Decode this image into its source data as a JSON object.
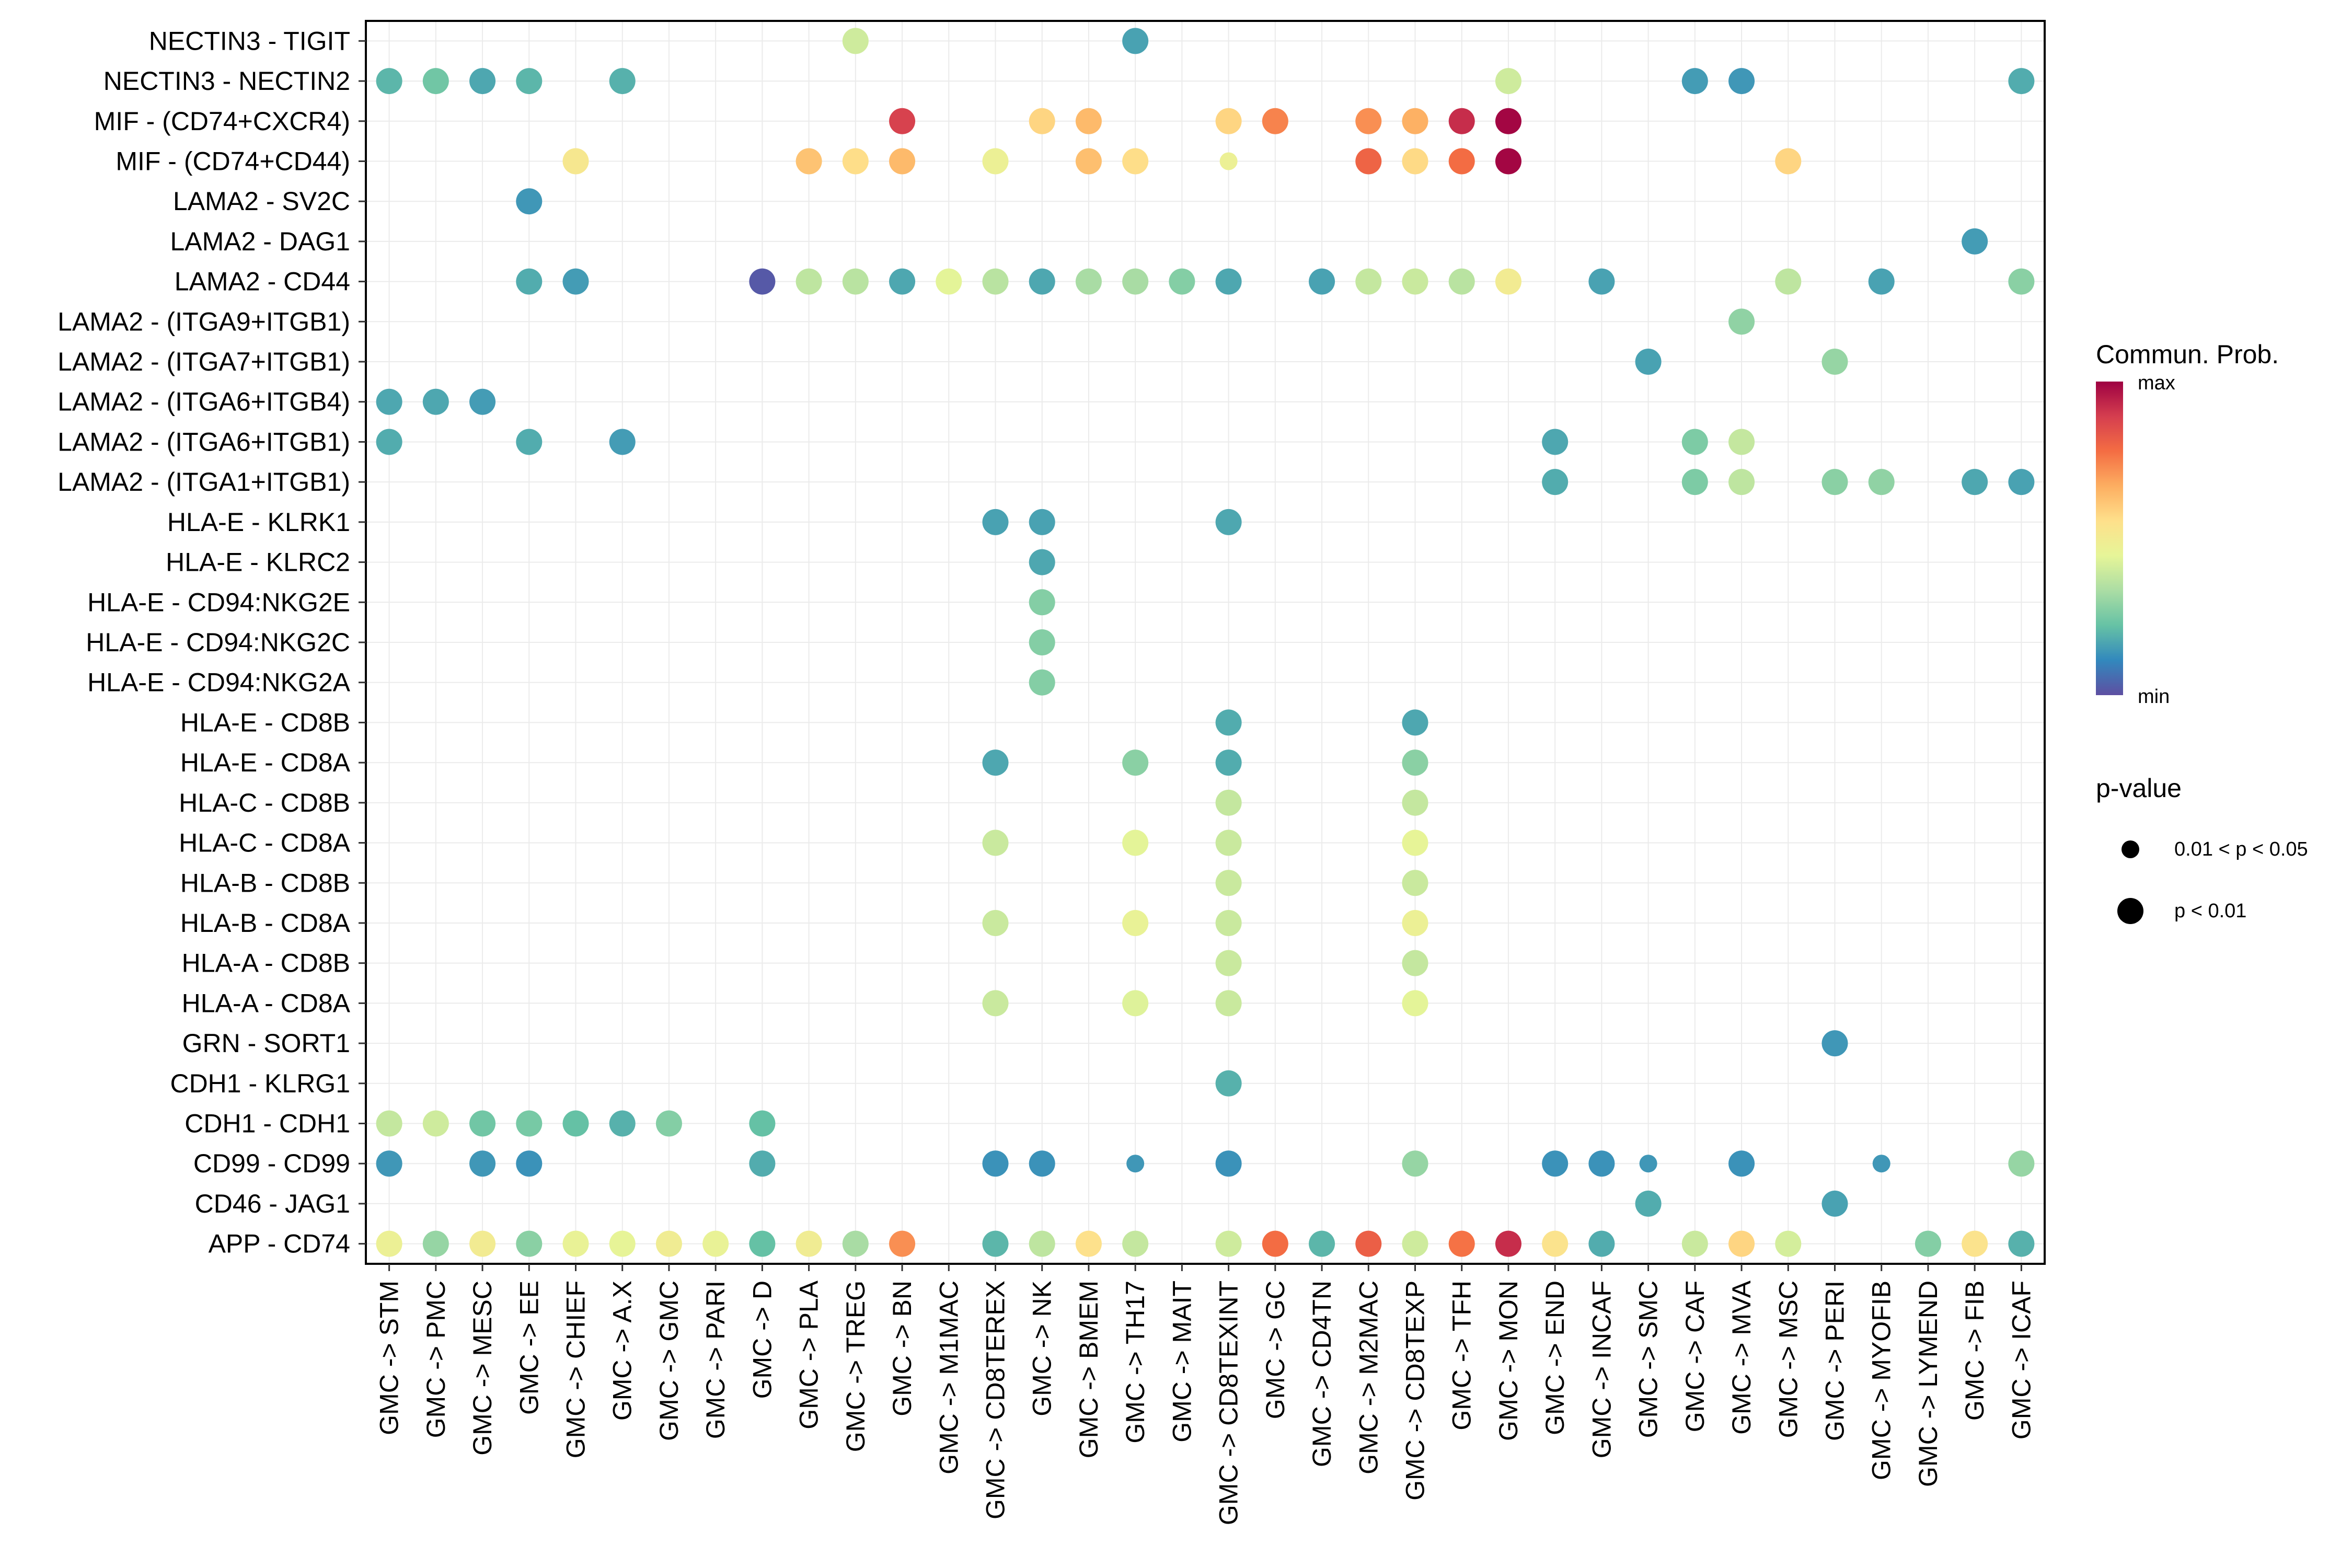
{
  "chart_data": {
    "type": "scatter",
    "title": "",
    "xlabel": "",
    "ylabel": "",
    "grid": true,
    "categories_x": [
      "GMC -> STM",
      "GMC -> PMC",
      "GMC -> MESC",
      "GMC -> EE",
      "GMC -> CHIEF",
      "GMC -> A.X",
      "GMC -> GMC",
      "GMC -> PARI",
      "GMC -> D",
      "GMC -> PLA",
      "GMC -> TREG",
      "GMC -> BN",
      "GMC -> M1MAC",
      "GMC -> CD8TEREX",
      "GMC -> NK",
      "GMC -> BMEM",
      "GMC -> TH17",
      "GMC -> MAIT",
      "GMC -> CD8TEXINT",
      "GMC -> GC",
      "GMC -> CD4TN",
      "GMC -> M2MAC",
      "GMC -> CD8TEXP",
      "GMC -> TFH",
      "GMC -> MON",
      "GMC -> END",
      "GMC -> INCAF",
      "GMC -> SMC",
      "GMC -> CAF",
      "GMC -> MVA",
      "GMC -> MSC",
      "GMC -> PERI",
      "GMC -> MYOFIB",
      "GMC -> LYMEND",
      "GMC -> FIB",
      "GMC -> ICAF"
    ],
    "categories_y": [
      "NECTIN3 - TIGIT",
      "NECTIN3 - NECTIN2",
      "MIF - (CD74+CXCR4)",
      "MIF - (CD74+CD44)",
      "LAMA2 - SV2C",
      "LAMA2 - DAG1",
      "LAMA2 - CD44",
      "LAMA2 - (ITGA9+ITGB1)",
      "LAMA2 - (ITGA7+ITGB1)",
      "LAMA2 - (ITGA6+ITGB4)",
      "LAMA2 - (ITGA6+ITGB1)",
      "LAMA2 - (ITGA1+ITGB1)",
      "HLA-E - KLRK1",
      "HLA-E - KLRC2",
      "HLA-E - CD94:NKG2E",
      "HLA-E - CD94:NKG2C",
      "HLA-E - CD94:NKG2A",
      "HLA-E - CD8B",
      "HLA-E - CD8A",
      "HLA-C - CD8B",
      "HLA-C - CD8A",
      "HLA-B - CD8B",
      "HLA-B - CD8A",
      "HLA-A - CD8B",
      "HLA-A - CD8A",
      "GRN - SORT1",
      "CDH1 - KLRG1",
      "CDH1 - CDH1",
      "CD99 - CD99",
      "CD46 - JAG1",
      "APP - CD74"
    ],
    "color_scale": [
      "#5E4FA2",
      "#3288BD",
      "#66C2A5",
      "#ABDDA4",
      "#E6F598",
      "#FEE08B",
      "#FDAE61",
      "#F46D43",
      "#D53E4F",
      "#9E0142"
    ],
    "points": [
      {
        "x": 10,
        "y": 0,
        "v": 0.4,
        "p": "p < 0.01"
      },
      {
        "x": 16,
        "y": 0,
        "v": 0.16,
        "p": "p < 0.01"
      },
      {
        "x": 0,
        "y": 1,
        "v": 0.2,
        "p": "p < 0.01"
      },
      {
        "x": 1,
        "y": 1,
        "v": 0.24,
        "p": "p < 0.01"
      },
      {
        "x": 2,
        "y": 1,
        "v": 0.17,
        "p": "p < 0.01"
      },
      {
        "x": 3,
        "y": 1,
        "v": 0.2,
        "p": "p < 0.01"
      },
      {
        "x": 5,
        "y": 1,
        "v": 0.19,
        "p": "p < 0.01"
      },
      {
        "x": 24,
        "y": 1,
        "v": 0.4,
        "p": "p < 0.01"
      },
      {
        "x": 28,
        "y": 1,
        "v": 0.15,
        "p": "p < 0.01"
      },
      {
        "x": 29,
        "y": 1,
        "v": 0.14,
        "p": "p < 0.01"
      },
      {
        "x": 35,
        "y": 1,
        "v": 0.18,
        "p": "p < 0.01"
      },
      {
        "x": 11,
        "y": 2,
        "v": 0.88,
        "p": "p < 0.01"
      },
      {
        "x": 14,
        "y": 2,
        "v": 0.58,
        "p": "p < 0.01"
      },
      {
        "x": 15,
        "y": 2,
        "v": 0.64,
        "p": "p < 0.01"
      },
      {
        "x": 18,
        "y": 2,
        "v": 0.58,
        "p": "p < 0.01"
      },
      {
        "x": 19,
        "y": 2,
        "v": 0.74,
        "p": "p < 0.01"
      },
      {
        "x": 21,
        "y": 2,
        "v": 0.72,
        "p": "p < 0.01"
      },
      {
        "x": 22,
        "y": 2,
        "v": 0.66,
        "p": "p < 0.01"
      },
      {
        "x": 23,
        "y": 2,
        "v": 0.92,
        "p": "p < 0.01"
      },
      {
        "x": 24,
        "y": 2,
        "v": 0.99,
        "p": "p < 0.01"
      },
      {
        "x": 4,
        "y": 3,
        "v": 0.52,
        "p": "p < 0.01"
      },
      {
        "x": 9,
        "y": 3,
        "v": 0.62,
        "p": "p < 0.01"
      },
      {
        "x": 10,
        "y": 3,
        "v": 0.56,
        "p": "p < 0.01"
      },
      {
        "x": 11,
        "y": 3,
        "v": 0.64,
        "p": "p < 0.01"
      },
      {
        "x": 13,
        "y": 3,
        "v": 0.47,
        "p": "p < 0.01"
      },
      {
        "x": 15,
        "y": 3,
        "v": 0.63,
        "p": "p < 0.01"
      },
      {
        "x": 16,
        "y": 3,
        "v": 0.56,
        "p": "p < 0.01"
      },
      {
        "x": 18,
        "y": 3,
        "v": 0.47,
        "p": "0.01 < p < 0.05"
      },
      {
        "x": 21,
        "y": 3,
        "v": 0.8,
        "p": "p < 0.01"
      },
      {
        "x": 22,
        "y": 3,
        "v": 0.57,
        "p": "p < 0.01"
      },
      {
        "x": 23,
        "y": 3,
        "v": 0.78,
        "p": "p < 0.01"
      },
      {
        "x": 24,
        "y": 3,
        "v": 0.99,
        "p": "p < 0.01"
      },
      {
        "x": 30,
        "y": 3,
        "v": 0.58,
        "p": "p < 0.01"
      },
      {
        "x": 3,
        "y": 4,
        "v": 0.14,
        "p": "p < 0.01"
      },
      {
        "x": 34,
        "y": 5,
        "v": 0.15,
        "p": "p < 0.01"
      },
      {
        "x": 3,
        "y": 6,
        "v": 0.18,
        "p": "p < 0.01"
      },
      {
        "x": 4,
        "y": 6,
        "v": 0.15,
        "p": "p < 0.01"
      },
      {
        "x": 8,
        "y": 6,
        "v": 0.02,
        "p": "p < 0.01"
      },
      {
        "x": 9,
        "y": 6,
        "v": 0.37,
        "p": "p < 0.01"
      },
      {
        "x": 10,
        "y": 6,
        "v": 0.36,
        "p": "p < 0.01"
      },
      {
        "x": 11,
        "y": 6,
        "v": 0.17,
        "p": "p < 0.01"
      },
      {
        "x": 12,
        "y": 6,
        "v": 0.44,
        "p": "p < 0.01"
      },
      {
        "x": 13,
        "y": 6,
        "v": 0.36,
        "p": "p < 0.01"
      },
      {
        "x": 14,
        "y": 6,
        "v": 0.17,
        "p": "p < 0.01"
      },
      {
        "x": 15,
        "y": 6,
        "v": 0.33,
        "p": "p < 0.01"
      },
      {
        "x": 16,
        "y": 6,
        "v": 0.33,
        "p": "p < 0.01"
      },
      {
        "x": 17,
        "y": 6,
        "v": 0.27,
        "p": "p < 0.01"
      },
      {
        "x": 18,
        "y": 6,
        "v": 0.17,
        "p": "p < 0.01"
      },
      {
        "x": 20,
        "y": 6,
        "v": 0.16,
        "p": "p < 0.01"
      },
      {
        "x": 21,
        "y": 6,
        "v": 0.38,
        "p": "p < 0.01"
      },
      {
        "x": 22,
        "y": 6,
        "v": 0.39,
        "p": "p < 0.01"
      },
      {
        "x": 23,
        "y": 6,
        "v": 0.36,
        "p": "p < 0.01"
      },
      {
        "x": 24,
        "y": 6,
        "v": 0.5,
        "p": "p < 0.01"
      },
      {
        "x": 26,
        "y": 6,
        "v": 0.16,
        "p": "p < 0.01"
      },
      {
        "x": 30,
        "y": 6,
        "v": 0.37,
        "p": "p < 0.01"
      },
      {
        "x": 32,
        "y": 6,
        "v": 0.16,
        "p": "p < 0.01"
      },
      {
        "x": 35,
        "y": 6,
        "v": 0.28,
        "p": "p < 0.01"
      },
      {
        "x": 29,
        "y": 7,
        "v": 0.29,
        "p": "p < 0.01"
      },
      {
        "x": 27,
        "y": 8,
        "v": 0.16,
        "p": "p < 0.01"
      },
      {
        "x": 31,
        "y": 8,
        "v": 0.3,
        "p": "p < 0.01"
      },
      {
        "x": 0,
        "y": 9,
        "v": 0.17,
        "p": "p < 0.01"
      },
      {
        "x": 1,
        "y": 9,
        "v": 0.17,
        "p": "p < 0.01"
      },
      {
        "x": 2,
        "y": 9,
        "v": 0.15,
        "p": "p < 0.01"
      },
      {
        "x": 0,
        "y": 10,
        "v": 0.18,
        "p": "p < 0.01"
      },
      {
        "x": 3,
        "y": 10,
        "v": 0.18,
        "p": "p < 0.01"
      },
      {
        "x": 5,
        "y": 10,
        "v": 0.15,
        "p": "p < 0.01"
      },
      {
        "x": 25,
        "y": 10,
        "v": 0.17,
        "p": "p < 0.01"
      },
      {
        "x": 28,
        "y": 10,
        "v": 0.26,
        "p": "p < 0.01"
      },
      {
        "x": 29,
        "y": 10,
        "v": 0.38,
        "p": "p < 0.01"
      },
      {
        "x": 25,
        "y": 11,
        "v": 0.18,
        "p": "p < 0.01"
      },
      {
        "x": 28,
        "y": 11,
        "v": 0.26,
        "p": "p < 0.01"
      },
      {
        "x": 29,
        "y": 11,
        "v": 0.37,
        "p": "p < 0.01"
      },
      {
        "x": 31,
        "y": 11,
        "v": 0.28,
        "p": "p < 0.01"
      },
      {
        "x": 32,
        "y": 11,
        "v": 0.29,
        "p": "p < 0.01"
      },
      {
        "x": 34,
        "y": 11,
        "v": 0.17,
        "p": "p < 0.01"
      },
      {
        "x": 35,
        "y": 11,
        "v": 0.16,
        "p": "p < 0.01"
      },
      {
        "x": 13,
        "y": 12,
        "v": 0.16,
        "p": "p < 0.01"
      },
      {
        "x": 14,
        "y": 12,
        "v": 0.16,
        "p": "p < 0.01"
      },
      {
        "x": 18,
        "y": 12,
        "v": 0.17,
        "p": "p < 0.01"
      },
      {
        "x": 14,
        "y": 13,
        "v": 0.17,
        "p": "p < 0.01"
      },
      {
        "x": 14,
        "y": 14,
        "v": 0.27,
        "p": "p < 0.01"
      },
      {
        "x": 14,
        "y": 15,
        "v": 0.27,
        "p": "p < 0.01"
      },
      {
        "x": 14,
        "y": 16,
        "v": 0.27,
        "p": "p < 0.01"
      },
      {
        "x": 18,
        "y": 17,
        "v": 0.18,
        "p": "p < 0.01"
      },
      {
        "x": 22,
        "y": 17,
        "v": 0.17,
        "p": "p < 0.01"
      },
      {
        "x": 13,
        "y": 18,
        "v": 0.17,
        "p": "p < 0.01"
      },
      {
        "x": 16,
        "y": 18,
        "v": 0.28,
        "p": "p < 0.01"
      },
      {
        "x": 18,
        "y": 18,
        "v": 0.18,
        "p": "p < 0.01"
      },
      {
        "x": 22,
        "y": 18,
        "v": 0.28,
        "p": "p < 0.01"
      },
      {
        "x": 18,
        "y": 19,
        "v": 0.38,
        "p": "p < 0.01"
      },
      {
        "x": 22,
        "y": 19,
        "v": 0.38,
        "p": "p < 0.01"
      },
      {
        "x": 13,
        "y": 20,
        "v": 0.39,
        "p": "p < 0.01"
      },
      {
        "x": 16,
        "y": 20,
        "v": 0.44,
        "p": "p < 0.01"
      },
      {
        "x": 18,
        "y": 20,
        "v": 0.39,
        "p": "p < 0.01"
      },
      {
        "x": 22,
        "y": 20,
        "v": 0.45,
        "p": "p < 0.01"
      },
      {
        "x": 18,
        "y": 21,
        "v": 0.39,
        "p": "p < 0.01"
      },
      {
        "x": 22,
        "y": 21,
        "v": 0.39,
        "p": "p < 0.01"
      },
      {
        "x": 13,
        "y": 22,
        "v": 0.39,
        "p": "p < 0.01"
      },
      {
        "x": 16,
        "y": 22,
        "v": 0.46,
        "p": "p < 0.01"
      },
      {
        "x": 18,
        "y": 22,
        "v": 0.39,
        "p": "p < 0.01"
      },
      {
        "x": 22,
        "y": 22,
        "v": 0.47,
        "p": "p < 0.01"
      },
      {
        "x": 18,
        "y": 23,
        "v": 0.39,
        "p": "p < 0.01"
      },
      {
        "x": 22,
        "y": 23,
        "v": 0.38,
        "p": "p < 0.01"
      },
      {
        "x": 13,
        "y": 24,
        "v": 0.39,
        "p": "p < 0.01"
      },
      {
        "x": 16,
        "y": 24,
        "v": 0.43,
        "p": "p < 0.01"
      },
      {
        "x": 18,
        "y": 24,
        "v": 0.39,
        "p": "p < 0.01"
      },
      {
        "x": 22,
        "y": 24,
        "v": 0.44,
        "p": "p < 0.01"
      },
      {
        "x": 31,
        "y": 25,
        "v": 0.14,
        "p": "p < 0.01"
      },
      {
        "x": 18,
        "y": 26,
        "v": 0.19,
        "p": "p < 0.01"
      },
      {
        "x": 0,
        "y": 27,
        "v": 0.38,
        "p": "p < 0.01"
      },
      {
        "x": 1,
        "y": 27,
        "v": 0.4,
        "p": "p < 0.01"
      },
      {
        "x": 2,
        "y": 27,
        "v": 0.24,
        "p": "p < 0.01"
      },
      {
        "x": 3,
        "y": 27,
        "v": 0.25,
        "p": "p < 0.01"
      },
      {
        "x": 4,
        "y": 27,
        "v": 0.22,
        "p": "p < 0.01"
      },
      {
        "x": 5,
        "y": 27,
        "v": 0.19,
        "p": "p < 0.01"
      },
      {
        "x": 6,
        "y": 27,
        "v": 0.27,
        "p": "p < 0.01"
      },
      {
        "x": 8,
        "y": 27,
        "v": 0.22,
        "p": "p < 0.01"
      },
      {
        "x": 0,
        "y": 28,
        "v": 0.14,
        "p": "p < 0.01"
      },
      {
        "x": 2,
        "y": 28,
        "v": 0.14,
        "p": "p < 0.01"
      },
      {
        "x": 3,
        "y": 28,
        "v": 0.13,
        "p": "p < 0.01"
      },
      {
        "x": 8,
        "y": 28,
        "v": 0.18,
        "p": "p < 0.01"
      },
      {
        "x": 13,
        "y": 28,
        "v": 0.13,
        "p": "p < 0.01"
      },
      {
        "x": 14,
        "y": 28,
        "v": 0.13,
        "p": "p < 0.01"
      },
      {
        "x": 16,
        "y": 28,
        "v": 0.14,
        "p": "0.01 < p < 0.05"
      },
      {
        "x": 18,
        "y": 28,
        "v": 0.13,
        "p": "p < 0.01"
      },
      {
        "x": 22,
        "y": 28,
        "v": 0.3,
        "p": "p < 0.01"
      },
      {
        "x": 25,
        "y": 28,
        "v": 0.13,
        "p": "p < 0.01"
      },
      {
        "x": 26,
        "y": 28,
        "v": 0.13,
        "p": "p < 0.01"
      },
      {
        "x": 27,
        "y": 28,
        "v": 0.14,
        "p": "0.01 < p < 0.05"
      },
      {
        "x": 29,
        "y": 28,
        "v": 0.13,
        "p": "p < 0.01"
      },
      {
        "x": 32,
        "y": 28,
        "v": 0.14,
        "p": "0.01 < p < 0.05"
      },
      {
        "x": 35,
        "y": 28,
        "v": 0.3,
        "p": "p < 0.01"
      },
      {
        "x": 27,
        "y": 29,
        "v": 0.18,
        "p": "p < 0.01"
      },
      {
        "x": 31,
        "y": 29,
        "v": 0.16,
        "p": "p < 0.01"
      },
      {
        "x": 0,
        "y": 30,
        "v": 0.47,
        "p": "p < 0.01"
      },
      {
        "x": 1,
        "y": 30,
        "v": 0.3,
        "p": "p < 0.01"
      },
      {
        "x": 2,
        "y": 30,
        "v": 0.5,
        "p": "p < 0.01"
      },
      {
        "x": 3,
        "y": 30,
        "v": 0.28,
        "p": "p < 0.01"
      },
      {
        "x": 4,
        "y": 30,
        "v": 0.46,
        "p": "p < 0.01"
      },
      {
        "x": 5,
        "y": 30,
        "v": 0.45,
        "p": "p < 0.01"
      },
      {
        "x": 6,
        "y": 30,
        "v": 0.49,
        "p": "p < 0.01"
      },
      {
        "x": 7,
        "y": 30,
        "v": 0.46,
        "p": "p < 0.01"
      },
      {
        "x": 8,
        "y": 30,
        "v": 0.22,
        "p": "p < 0.01"
      },
      {
        "x": 9,
        "y": 30,
        "v": 0.49,
        "p": "p < 0.01"
      },
      {
        "x": 10,
        "y": 30,
        "v": 0.33,
        "p": "p < 0.01"
      },
      {
        "x": 11,
        "y": 30,
        "v": 0.72,
        "p": "p < 0.01"
      },
      {
        "x": 13,
        "y": 30,
        "v": 0.2,
        "p": "p < 0.01"
      },
      {
        "x": 14,
        "y": 30,
        "v": 0.37,
        "p": "p < 0.01"
      },
      {
        "x": 15,
        "y": 30,
        "v": 0.55,
        "p": "p < 0.01"
      },
      {
        "x": 16,
        "y": 30,
        "v": 0.38,
        "p": "p < 0.01"
      },
      {
        "x": 18,
        "y": 30,
        "v": 0.4,
        "p": "p < 0.01"
      },
      {
        "x": 19,
        "y": 30,
        "v": 0.78,
        "p": "p < 0.01"
      },
      {
        "x": 20,
        "y": 30,
        "v": 0.2,
        "p": "p < 0.01"
      },
      {
        "x": 21,
        "y": 30,
        "v": 0.81,
        "p": "p < 0.01"
      },
      {
        "x": 22,
        "y": 30,
        "v": 0.4,
        "p": "p < 0.01"
      },
      {
        "x": 23,
        "y": 30,
        "v": 0.77,
        "p": "p < 0.01"
      },
      {
        "x": 24,
        "y": 30,
        "v": 0.92,
        "p": "p < 0.01"
      },
      {
        "x": 25,
        "y": 30,
        "v": 0.54,
        "p": "p < 0.01"
      },
      {
        "x": 26,
        "y": 30,
        "v": 0.18,
        "p": "p < 0.01"
      },
      {
        "x": 28,
        "y": 30,
        "v": 0.39,
        "p": "p < 0.01"
      },
      {
        "x": 29,
        "y": 30,
        "v": 0.58,
        "p": "p < 0.01"
      },
      {
        "x": 30,
        "y": 30,
        "v": 0.41,
        "p": "p < 0.01"
      },
      {
        "x": 33,
        "y": 30,
        "v": 0.27,
        "p": "p < 0.01"
      },
      {
        "x": 34,
        "y": 30,
        "v": 0.54,
        "p": "p < 0.01"
      },
      {
        "x": 35,
        "y": 30,
        "v": 0.19,
        "p": "p < 0.01"
      }
    ]
  },
  "legend": {
    "color_title": "Commun. Prob.",
    "color_max": "max",
    "color_min": "min",
    "size_title": "p-value",
    "size_items": [
      {
        "label": "0.01 < p < 0.05",
        "key": "0.01 < p < 0.05"
      },
      {
        "label": "p < 0.01",
        "key": "p < 0.01"
      }
    ]
  }
}
